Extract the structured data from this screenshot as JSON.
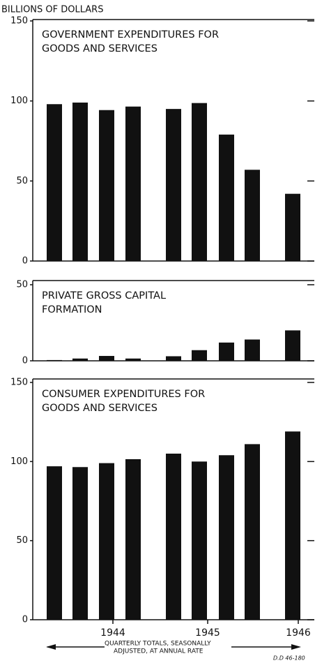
{
  "y_axis_label": "BILLIONS OF DOLLARS",
  "chart_data": [
    {
      "type": "bar",
      "title": [
        "GOVERNMENT EXPENDITURES FOR",
        "GOODS AND SERVICES"
      ],
      "categories": [
        null,
        null,
        null,
        null,
        null,
        null,
        null,
        null,
        null
      ],
      "values": [
        98,
        99,
        94.3,
        96.5,
        95,
        98.7,
        79,
        57,
        42
      ],
      "ylim": [
        0,
        150
      ],
      "yticks": [
        0,
        50,
        100,
        150
      ],
      "color": "#111111"
    },
    {
      "type": "bar",
      "title": [
        "PRIVATE GROSS CAPITAL",
        "FORMATION"
      ],
      "categories": [
        null,
        null,
        null,
        null,
        null,
        null,
        null,
        null,
        null
      ],
      "values": [
        0.5,
        1.5,
        3.2,
        1.5,
        3,
        7,
        12,
        14,
        20
      ],
      "ylim": [
        0,
        50
      ],
      "yticks": [
        0,
        50
      ],
      "color": "#111111"
    },
    {
      "type": "bar",
      "title": [
        "CONSUMER EXPENDITURES FOR",
        "GOODS AND SERVICES"
      ],
      "categories": [
        null,
        null,
        null,
        null,
        null,
        null,
        null,
        null,
        null
      ],
      "values": [
        97,
        96.5,
        99,
        101.5,
        105,
        100,
        104,
        111,
        119
      ],
      "ylim": [
        0,
        150
      ],
      "yticks": [
        0,
        50,
        100,
        150
      ],
      "color": "#111111"
    }
  ],
  "x_axis": {
    "years": [
      "1944",
      "1945",
      "1946"
    ],
    "note": [
      "QUARTERLY TOTALS, SEASONALLY",
      "ADJUSTED, AT ANNUAL RATE"
    ]
  },
  "code": "D.D 46-180"
}
